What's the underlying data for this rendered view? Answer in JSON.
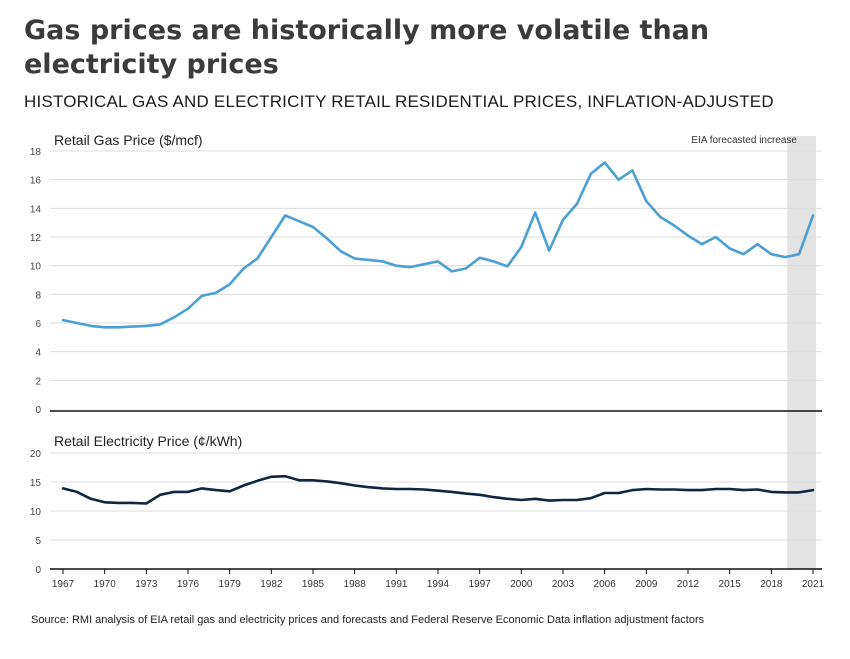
{
  "title": "Gas prices are historically more volatile than electricity prices",
  "subtitle": "HISTORICAL GAS AND ELECTRICITY RETAIL RESIDENTIAL PRICES, INFLATION-ADJUSTED",
  "source": "Source: RMI analysis of EIA retail gas and electricity prices and forecasts and Federal Reserve Economic Data inflation adjustment factors",
  "colors": {
    "gas": "#4a9fd4",
    "electricity": "#0f2541",
    "shade": "#e3e3e3",
    "grid": "#dcdcdc"
  },
  "chart_data": [
    {
      "type": "line",
      "ylabel": "Retail Gas Price ($/mcf)",
      "annotation": "EIA forecasted increase",
      "shaded_range": [
        2020,
        2021
      ],
      "ylim": [
        0,
        18
      ],
      "yticks": [
        "0",
        "2",
        "4",
        "6",
        "8",
        "10",
        "12",
        "14",
        "16",
        "18"
      ],
      "grid": true,
      "x": [
        1967,
        1968,
        1969,
        1970,
        1971,
        1972,
        1973,
        1974,
        1975,
        1976,
        1977,
        1978,
        1979,
        1980,
        1981,
        1982,
        1983,
        1984,
        1985,
        1986,
        1987,
        1988,
        1989,
        1990,
        1991,
        1992,
        1993,
        1994,
        1995,
        1996,
        1997,
        1998,
        1999,
        2000,
        2001,
        2002,
        2003,
        2004,
        2005,
        2006,
        2007,
        2008,
        2009,
        2010,
        2011,
        2012,
        2013,
        2014,
        2015,
        2016,
        2017,
        2018,
        2019,
        2020,
        2021
      ],
      "series": [
        {
          "values": [
            6.2,
            6.0,
            5.8,
            5.7,
            5.7,
            5.75,
            5.8,
            5.9,
            6.4,
            7.0,
            7.9,
            8.1,
            8.7,
            9.8,
            10.5,
            12.0,
            13.5,
            13.1,
            12.7,
            11.9,
            11.0,
            10.5,
            10.4,
            10.3,
            10.0,
            9.9,
            10.1,
            10.3,
            9.6,
            9.8,
            10.55,
            10.3,
            9.95,
            11.3,
            13.7,
            11.05,
            13.2,
            14.3,
            16.4,
            17.2,
            16.0,
            16.65,
            14.5,
            13.4,
            12.8,
            12.1,
            11.5,
            12.0,
            11.2,
            10.8,
            11.5,
            10.8,
            10.6,
            10.8,
            13.5
          ]
        }
      ]
    },
    {
      "type": "line",
      "ylabel": "Retail Electricity Price (¢/kWh)",
      "ylim": [
        0,
        20
      ],
      "yticks": [
        "0",
        "5",
        "10",
        "15",
        "20"
      ],
      "grid": true,
      "xticks": [
        "1967",
        "1970",
        "1973",
        "1976",
        "1979",
        "1982",
        "1985",
        "1988",
        "1991",
        "1994",
        "1997",
        "2000",
        "2003",
        "2006",
        "2009",
        "2012",
        "2015",
        "2018",
        "2021"
      ],
      "x": [
        1967,
        1968,
        1969,
        1970,
        1971,
        1972,
        1973,
        1974,
        1975,
        1976,
        1977,
        1978,
        1979,
        1980,
        1981,
        1982,
        1983,
        1984,
        1985,
        1986,
        1987,
        1988,
        1989,
        1990,
        1991,
        1992,
        1993,
        1994,
        1995,
        1996,
        1997,
        1998,
        1999,
        2000,
        2001,
        2002,
        2003,
        2004,
        2005,
        2006,
        2007,
        2008,
        2009,
        2010,
        2011,
        2012,
        2013,
        2014,
        2015,
        2016,
        2017,
        2018,
        2019,
        2020,
        2021
      ],
      "series": [
        {
          "values": [
            13.9,
            13.3,
            12.1,
            11.5,
            11.4,
            11.4,
            11.3,
            12.8,
            13.3,
            13.3,
            13.9,
            13.6,
            13.4,
            14.4,
            15.2,
            15.9,
            16.0,
            15.3,
            15.3,
            15.1,
            14.8,
            14.4,
            14.1,
            13.9,
            13.8,
            13.8,
            13.7,
            13.5,
            13.3,
            13.0,
            12.8,
            12.4,
            12.1,
            11.9,
            12.1,
            11.8,
            11.9,
            11.9,
            12.2,
            13.1,
            13.1,
            13.6,
            13.8,
            13.7,
            13.7,
            13.6,
            13.6,
            13.8,
            13.8,
            13.6,
            13.7,
            13.3,
            13.2,
            13.2,
            13.6
          ]
        }
      ]
    }
  ]
}
